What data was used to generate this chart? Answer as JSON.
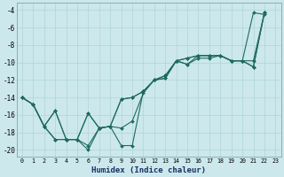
{
  "xlabel": "Humidex (Indice chaleur)",
  "bg_color": "#cce8ec",
  "line_color": "#1e6b5e",
  "grid_color": "#aed4d8",
  "xlim": [
    -0.5,
    23.5
  ],
  "ylim": [
    -20.8,
    -3.2
  ],
  "yticks": [
    -4,
    -6,
    -8,
    -10,
    -12,
    -14,
    -16,
    -18,
    -20
  ],
  "xticks": [
    0,
    1,
    2,
    3,
    4,
    5,
    6,
    7,
    8,
    9,
    10,
    11,
    12,
    13,
    14,
    15,
    16,
    17,
    18,
    19,
    20,
    21,
    22,
    23
  ],
  "series": [
    {
      "x": [
        0,
        1,
        2,
        3,
        4,
        5,
        6,
        7,
        8,
        9,
        10,
        11,
        12,
        13,
        14,
        15,
        16,
        17,
        18,
        19,
        20,
        21,
        22
      ],
      "y": [
        -14,
        -14.8,
        -17.3,
        -18.8,
        -18.8,
        -18.8,
        -15.8,
        -17.5,
        -17.3,
        -14.2,
        -14.0,
        -13.3,
        -12.0,
        -11.5,
        -9.8,
        -9.5,
        -9.2,
        -9.2,
        -9.2,
        -9.8,
        -9.8,
        -4.3,
        -4.5
      ]
    },
    {
      "x": [
        0,
        1,
        2,
        3,
        4,
        5,
        6,
        7,
        8,
        9,
        10,
        11,
        12,
        13,
        14,
        15,
        16,
        17,
        18,
        19,
        20,
        21,
        22
      ],
      "y": [
        -14,
        -14.8,
        -17.3,
        -18.8,
        -18.8,
        -18.8,
        -15.8,
        -17.5,
        -17.3,
        -14.2,
        -14.0,
        -13.3,
        -12.0,
        -11.5,
        -9.8,
        -9.5,
        -9.2,
        -9.2,
        -9.2,
        -9.8,
        -9.8,
        -9.8,
        -4.3
      ]
    },
    {
      "x": [
        0,
        1,
        2,
        3,
        4,
        5,
        6,
        7,
        8,
        9,
        10,
        11,
        12,
        13,
        14,
        15,
        16,
        17,
        18,
        19,
        20,
        21,
        22
      ],
      "y": [
        -14,
        -14.8,
        -17.3,
        -15.5,
        -18.8,
        -18.8,
        -19.5,
        -17.5,
        -17.3,
        -19.5,
        -19.5,
        -13.3,
        -12.0,
        -11.8,
        -9.8,
        -10.2,
        -9.2,
        -9.2,
        -9.2,
        -9.8,
        -9.8,
        -10.5,
        -4.3
      ]
    },
    {
      "x": [
        0,
        1,
        2,
        3,
        4,
        5,
        6,
        7,
        8,
        9,
        10,
        11,
        12,
        13,
        14,
        15,
        16,
        17,
        18,
        19,
        20,
        21,
        22
      ],
      "y": [
        -14,
        -14.8,
        -17.3,
        -15.5,
        -18.8,
        -18.8,
        -20.0,
        -17.5,
        -17.3,
        -17.5,
        -16.7,
        -13.5,
        -12.0,
        -11.8,
        -9.8,
        -10.2,
        -9.5,
        -9.5,
        -9.2,
        -9.8,
        -9.8,
        -10.5,
        -4.3
      ]
    }
  ]
}
